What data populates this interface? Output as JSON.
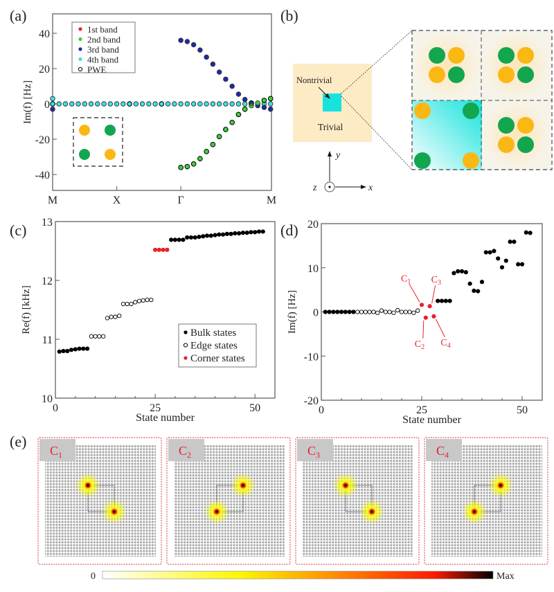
{
  "panel_labels": [
    "(a)",
    "(b)",
    "(c)",
    "(d)",
    "(e)"
  ],
  "chart_data": [
    {
      "id": "a",
      "type": "scatter",
      "ylabel": "Im(f) [Hz]",
      "ylim": [
        -49,
        51
      ],
      "yticks": [
        -40,
        -20,
        0,
        20,
        40
      ],
      "xlim": [
        0,
        3.414
      ],
      "xticks": [
        {
          "v": 0,
          "label": "M"
        },
        {
          "v": 1,
          "label": "X"
        },
        {
          "v": 2,
          "label": "Γ"
        },
        {
          "v": 3.414,
          "label": "M"
        }
      ],
      "legend": {
        "placement": "top-left",
        "entries": [
          {
            "label": "1st band",
            "color": "#e8202a",
            "filled": true
          },
          {
            "label": "2nd band",
            "color": "#3ed13a",
            "filled": true
          },
          {
            "label": "3rd band",
            "color": "#1f2aa8",
            "filled": true
          },
          {
            "label": "4th band",
            "color": "#3fdde0",
            "filled": true
          },
          {
            "label": "PWE",
            "color": "#000000",
            "filled": false
          }
        ]
      },
      "series": [
        {
          "name": "4th band",
          "color": "#3fdde0",
          "x": [
            0,
            0.1,
            0.2,
            0.3,
            0.4,
            0.5,
            0.6,
            0.7,
            0.8,
            0.9,
            1.0,
            1.1,
            1.2,
            1.3,
            1.4,
            1.5,
            1.6,
            1.7,
            1.8,
            1.9,
            2.0,
            2.1,
            2.2,
            2.3,
            2.4,
            2.5,
            2.6,
            2.7,
            2.8,
            2.9,
            3.0,
            3.1,
            3.2,
            3.3,
            3.4,
            0
          ],
          "y": [
            0,
            0,
            0,
            0,
            0,
            0,
            0,
            0,
            0,
            0,
            0,
            0,
            0,
            0,
            0,
            0,
            0,
            0,
            0,
            0,
            0,
            0,
            0,
            0,
            0,
            0,
            0,
            0,
            0,
            0,
            0,
            0,
            0,
            0,
            0,
            3
          ]
        },
        {
          "name": "3rd band",
          "color": "#1f2aa8",
          "x": [
            0,
            2.0,
            2.1,
            2.2,
            2.3,
            2.4,
            2.5,
            2.6,
            2.7,
            2.8,
            2.9,
            3.0,
            3.1,
            3.2,
            3.3,
            3.4
          ],
          "y": [
            -3,
            36,
            35.3,
            33.5,
            30.5,
            26.5,
            22.5,
            18,
            14,
            10,
            5.5,
            2.5,
            0.5,
            -1,
            -2,
            -3
          ]
        },
        {
          "name": "2nd band",
          "color": "#3ed13a",
          "x": [
            2.0,
            2.1,
            2.2,
            2.3,
            2.4,
            2.5,
            2.6,
            2.7,
            2.8,
            2.9,
            3.0,
            3.1,
            3.2,
            3.3,
            3.4
          ],
          "y": [
            -36,
            -35.5,
            -34,
            -31,
            -27,
            -23,
            -18.5,
            -14.5,
            -10.5,
            -6,
            -3,
            -1,
            0.5,
            2,
            3
          ]
        },
        {
          "name": "PWE",
          "color": "#000000",
          "open": true,
          "x": [
            0,
            1.2,
            1.7,
            3.1,
            2.0,
            2.1,
            2.2,
            2.3,
            2.4,
            2.5,
            2.6,
            2.7,
            2.8,
            2.9,
            3.0,
            3.3,
            3.4
          ],
          "y": [
            0,
            0,
            0,
            0.5,
            -36,
            -35.5,
            -34,
            -31,
            -27,
            -23,
            -18.5,
            -14.5,
            -10.5,
            -6,
            -3,
            2,
            3
          ]
        }
      ]
    },
    {
      "id": "c",
      "type": "scatter",
      "xlabel": "State number",
      "ylabel": "Re(f) [kHz]",
      "xlim": [
        0,
        55
      ],
      "ylim": [
        10,
        13
      ],
      "xticks": [
        0,
        25,
        50
      ],
      "yticks": [
        10,
        11,
        12,
        13
      ],
      "legend": {
        "placement": "bottom-right",
        "entries": [
          {
            "label": "Bulk states",
            "color": "#000000",
            "filled": true
          },
          {
            "label": "Edge states",
            "color": "#000000",
            "filled": false
          },
          {
            "label": "Corner states",
            "color": "#e8202a",
            "filled": true
          }
        ]
      },
      "series": [
        {
          "name": "Bulk states",
          "x": [
            1,
            2,
            3,
            4,
            5,
            6,
            7,
            8,
            29,
            30,
            31,
            32,
            33,
            34,
            35,
            36,
            37,
            38,
            39,
            40,
            41,
            42,
            43,
            44,
            45,
            46,
            47,
            48,
            49,
            50,
            51,
            52
          ],
          "y": [
            10.79,
            10.8,
            10.8,
            10.82,
            10.83,
            10.84,
            10.84,
            10.84,
            12.69,
            12.69,
            12.69,
            12.69,
            12.73,
            12.73,
            12.73,
            12.74,
            12.75,
            12.76,
            12.76,
            12.77,
            12.78,
            12.78,
            12.79,
            12.79,
            12.8,
            12.8,
            12.81,
            12.81,
            12.82,
            12.82,
            12.83,
            12.83
          ]
        },
        {
          "name": "Edge states",
          "x": [
            9,
            10,
            11,
            12,
            13,
            14,
            15,
            16,
            17,
            18,
            19,
            20,
            21,
            22,
            23,
            24
          ],
          "y": [
            11.05,
            11.05,
            11.05,
            11.05,
            11.36,
            11.38,
            11.38,
            11.4,
            11.6,
            11.6,
            11.6,
            11.63,
            11.65,
            11.66,
            11.67,
            11.67
          ]
        },
        {
          "name": "Corner states",
          "x": [
            25,
            26,
            27,
            28
          ],
          "y": [
            12.52,
            12.52,
            12.52,
            12.52
          ]
        }
      ]
    },
    {
      "id": "d",
      "type": "scatter",
      "xlabel": "State number",
      "ylabel": "Im(f) [Hz]",
      "xlim": [
        0,
        55
      ],
      "ylim": [
        -20,
        20
      ],
      "xticks": [
        0,
        25,
        50
      ],
      "yticks": [
        -20,
        -10,
        0,
        10,
        20
      ],
      "series": [
        {
          "name": "Bulk states",
          "x": [
            1,
            2,
            3,
            4,
            5,
            6,
            7,
            8,
            29,
            30,
            31,
            32,
            33,
            34,
            35,
            36,
            37,
            38,
            39,
            40,
            41,
            42,
            43,
            44,
            45,
            46,
            47,
            48,
            49,
            50,
            51,
            52
          ],
          "y": [
            0,
            0,
            0,
            0,
            0,
            0,
            0,
            0,
            2.5,
            2.5,
            2.5,
            2.5,
            8.8,
            9.2,
            9.2,
            9.0,
            6.4,
            4.8,
            4.7,
            6.8,
            13.5,
            13.5,
            13.8,
            12.1,
            10.1,
            11.6,
            15.9,
            15.9,
            10.8,
            10.8,
            18.0,
            17.9
          ]
        },
        {
          "name": "Edge states",
          "x": [
            9,
            10,
            11,
            12,
            13,
            14,
            15,
            16,
            17,
            18,
            19,
            20,
            21,
            22,
            23,
            24
          ],
          "y": [
            0,
            0,
            0,
            0,
            0,
            -0.2,
            0.3,
            0,
            0,
            -0.2,
            0.4,
            0,
            0,
            0,
            -0.2,
            0.3
          ]
        },
        {
          "name": "Corner states",
          "x": [
            25,
            26,
            27,
            28
          ],
          "y": [
            1.6,
            -1.3,
            1.3,
            -1.0
          ]
        }
      ],
      "annotations": [
        {
          "label": "C",
          "sub": "1"
        },
        {
          "label": "C",
          "sub": "2"
        },
        {
          "label": "C",
          "sub": "3"
        },
        {
          "label": "C",
          "sub": "4"
        }
      ]
    }
  ],
  "diagram_b": {
    "outer_label": "Trivial",
    "inner_label": "Nontrivial",
    "axes": {
      "x": "x",
      "y": "y",
      "z": "z"
    },
    "colors": {
      "trivial": "#fdebc6",
      "nontrivial": "#17e3dd",
      "green": "#12a64e",
      "yellow": "#fbb714"
    }
  },
  "panel_e": {
    "panels": [
      {
        "label": "C",
        "sub": "1",
        "hotspots": [
          "top-left",
          "bottom-right"
        ]
      },
      {
        "label": "C",
        "sub": "2",
        "hotspots": [
          "top-right",
          "bottom-left"
        ]
      },
      {
        "label": "C",
        "sub": "3",
        "hotspots": [
          "top-left",
          "bottom-right"
        ]
      },
      {
        "label": "C",
        "sub": "4",
        "hotspots": [
          "top-right",
          "bottom-left"
        ]
      }
    ],
    "colorbar": {
      "min_label": "0",
      "max_label": "Max",
      "colors": [
        "#ffffff",
        "#fff700",
        "#ff8a00",
        "#ff1a00",
        "#000000"
      ]
    }
  }
}
